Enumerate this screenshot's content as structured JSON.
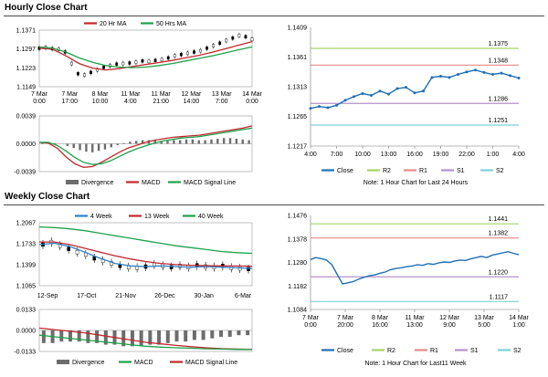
{
  "hourly": {
    "title": "Hourly Close Chart",
    "price_panel": {
      "legend": [
        "20 Hr MA",
        "50 Hrs MA"
      ],
      "y_ticks": [
        "1.1371",
        "1.1297",
        "1.1223",
        "1.1149"
      ],
      "x_ticks": [
        "7 Mar\n0:00",
        "7 Mar\n17:00",
        "8 Mar\n10:00",
        "11 Mar\n4:00",
        "11 Mar\n21:00",
        "12 Mar\n14:00",
        "13 Mar\n7:00",
        "14 Mar\n0:00"
      ]
    },
    "macd_panel": {
      "y_ticks": [
        "0.0039",
        "0.0000",
        "-0.0039"
      ],
      "legend": [
        "Divergence",
        "MACD",
        "MACD Signal Line"
      ]
    },
    "levels_panel": {
      "note": "Note: 1 Hour Chart for Last 24 Hours",
      "legend": [
        "Close",
        "R2",
        "R1",
        "S1",
        "S2"
      ]
    }
  },
  "weekly": {
    "title": "Weekly Close Chart",
    "price_panel": {
      "legend": [
        "4 Week",
        "13 Week",
        "40 Week"
      ],
      "y_ticks": [
        "1.2067",
        "1.1733",
        "1.1399",
        "1.1065"
      ],
      "x_ticks": [
        "12-Sep",
        "17-Oct",
        "21-Nov",
        "26-Dec",
        "30-Jan",
        "6-Mar"
      ]
    },
    "macd_panel": {
      "y_ticks": [
        "0.0133",
        "0.0000",
        "-0.0133"
      ],
      "legend": [
        "Divergence",
        "MACD",
        "MACD Signal Line"
      ]
    },
    "levels_panel": {
      "note": "Note: 1 Hour Chart for Last11 Week",
      "legend": [
        "Close",
        "R2",
        "R1",
        "S1",
        "S2"
      ]
    }
  },
  "colors": {
    "close": "#1f6fb2",
    "r2": "#a6d36a",
    "r1": "#e58a8a",
    "s1": "#b593c9",
    "s2": "#7fd0d8",
    "ma_red": "#c0282d",
    "ma_green": "#1fa24b",
    "ma_blue": "#2f80c8",
    "grid": "#cccccc"
  },
  "chart_data": [
    {
      "type": "line",
      "name": "hourly-close-24h",
      "title": "",
      "categories": [
        "4:00",
        "5:00",
        "6:00",
        "7:00",
        "8:00",
        "9:00",
        "10:00",
        "11:00",
        "12:00",
        "13:00",
        "14:00",
        "15:00",
        "16:00",
        "17:00",
        "18:00",
        "19:00",
        "20:00",
        "21:00",
        "22:00",
        "23:00",
        "0:00",
        "1:00",
        "2:00",
        "3:00",
        "4:00"
      ],
      "x_tick_labels": [
        "4:00",
        "7:00",
        "10:00",
        "13:00",
        "16:00",
        "19:00",
        "22:00",
        "1:00",
        "4:00"
      ],
      "y_ticks": [
        "1.1409",
        "1.1361",
        "1.1313",
        "1.1265",
        "1.1217"
      ],
      "ylim": [
        1.1217,
        1.1409
      ],
      "series": [
        {
          "name": "Close",
          "values": [
            1.1278,
            1.1281,
            1.1279,
            1.1283,
            1.1291,
            1.1297,
            1.1302,
            1.1299,
            1.1306,
            1.1301,
            1.131,
            1.1312,
            1.1303,
            1.1306,
            1.1328,
            1.133,
            1.1328,
            1.1333,
            1.1337,
            1.134,
            1.1336,
            1.1333,
            1.1335,
            1.1331,
            1.1327
          ]
        }
      ],
      "levels": [
        {
          "name": "R2",
          "value": 1.1375,
          "label": "1.1375"
        },
        {
          "name": "R1",
          "value": 1.1348,
          "label": "1.1348"
        },
        {
          "name": "S1",
          "value": 1.1286,
          "label": "1.1286"
        },
        {
          "name": "S2",
          "value": 1.1251,
          "label": "1.1251"
        }
      ]
    },
    {
      "type": "line",
      "name": "weekly-close-11w",
      "title": "",
      "categories_count": 40,
      "x_tick_labels": [
        "7 Mar\n0:00",
        "7 Mar\n20:00",
        "8 Mar\n16:00",
        "11 Mar\n13:00",
        "12 Mar\n9:00",
        "13 Mar\n5:00",
        "14 Mar\n1:00"
      ],
      "y_ticks": [
        "1.1476",
        "1.1378",
        "1.1280",
        "1.1182",
        "1.1084"
      ],
      "ylim": [
        1.1084,
        1.1476
      ],
      "series": [
        {
          "name": "Close",
          "values": [
            1.1292,
            1.13,
            1.1296,
            1.129,
            1.127,
            1.123,
            1.119,
            1.1195,
            1.12,
            1.121,
            1.1218,
            1.1225,
            1.1228,
            1.1235,
            1.124,
            1.125,
            1.1255,
            1.1258,
            1.1262,
            1.1265,
            1.127,
            1.1268,
            1.1275,
            1.1272,
            1.1278,
            1.1282,
            1.128,
            1.1286,
            1.129,
            1.1288,
            1.1295,
            1.13,
            1.1305,
            1.13,
            1.131,
            1.1315,
            1.132,
            1.1325,
            1.1318,
            1.1312
          ]
        }
      ],
      "levels": [
        {
          "name": "R2",
          "value": 1.1441,
          "label": "1.1441"
        },
        {
          "name": "R1",
          "value": 1.1382,
          "label": "1.1382"
        },
        {
          "name": "S1",
          "value": 1.122,
          "label": "1.1220"
        },
        {
          "name": "S2",
          "value": 1.1117,
          "label": "1.1117"
        }
      ]
    }
  ]
}
